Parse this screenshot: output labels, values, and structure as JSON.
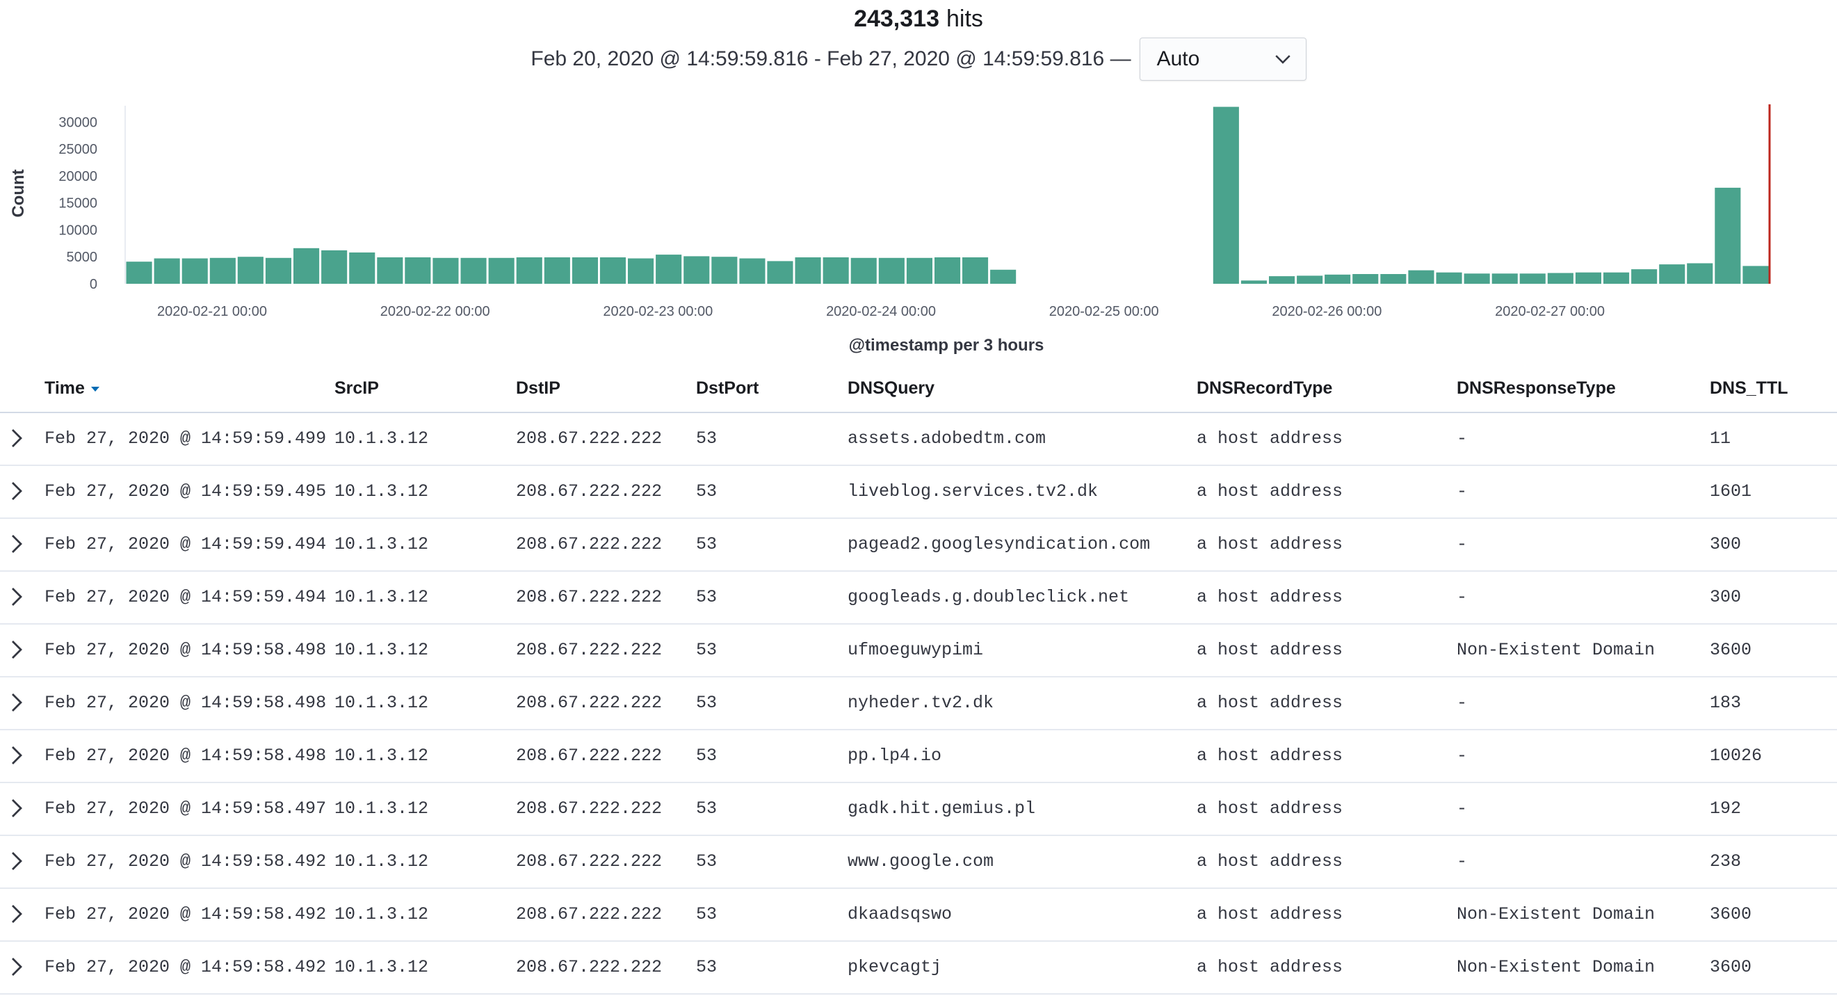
{
  "header": {
    "hit_count": "243,313",
    "hit_label": "hits",
    "time_range": "Feb 20, 2020 @ 14:59:59.816 - Feb 27, 2020 @ 14:59:59.816 —",
    "interval": {
      "selected": "Auto",
      "icon": "chevron-down-icon"
    }
  },
  "chart_data": {
    "type": "bar",
    "ylabel": "Count",
    "xlabel": "@timestamp per 3 hours",
    "ylim": [
      0,
      33000
    ],
    "y_ticks": [
      0,
      5000,
      10000,
      15000,
      20000,
      25000,
      30000
    ],
    "x_tick_labels": [
      "2020-02-21 00:00",
      "2020-02-22 00:00",
      "2020-02-23 00:00",
      "2020-02-24 00:00",
      "2020-02-25 00:00",
      "2020-02-26 00:00",
      "2020-02-27 00:00"
    ],
    "interval_hours": 3,
    "bar_color": "#4aa38d",
    "marker_color": "#bd271e",
    "bins_start": "2020-02-20 15:00",
    "values": [
      4100,
      4700,
      4700,
      4800,
      5000,
      4800,
      6600,
      6200,
      5800,
      4900,
      4900,
      4800,
      4800,
      4800,
      4900,
      4900,
      4900,
      4900,
      4700,
      5400,
      5100,
      5000,
      4700,
      4200,
      4900,
      4900,
      4800,
      4800,
      4800,
      4900,
      4900,
      2600,
      0,
      0,
      0,
      0,
      0,
      0,
      0,
      32800,
      600,
      1400,
      1500,
      1700,
      1800,
      1800,
      2500,
      2100,
      1900,
      1900,
      1900,
      2000,
      2100,
      2100,
      2700,
      3600,
      3800,
      17800,
      3300
    ],
    "marker": "2020-02-27 14:59:59.816"
  },
  "table": {
    "columns": [
      {
        "key": "time",
        "label": "Time",
        "sorted": "desc"
      },
      {
        "key": "src_ip",
        "label": "SrcIP"
      },
      {
        "key": "dst_ip",
        "label": "DstIP"
      },
      {
        "key": "dst_port",
        "label": "DstPort"
      },
      {
        "key": "dns_query",
        "label": "DNSQuery"
      },
      {
        "key": "dns_record_type",
        "label": "DNSRecordType"
      },
      {
        "key": "dns_response_type",
        "label": "DNSResponseType"
      },
      {
        "key": "dns_ttl",
        "label": "DNS_TTL"
      }
    ],
    "rows": [
      {
        "time": "Feb 27, 2020 @ 14:59:59.499",
        "src_ip": "10.1.3.12",
        "dst_ip": "208.67.222.222",
        "dst_port": "53",
        "dns_query": "assets.adobedtm.com",
        "dns_record_type": "a host address",
        "dns_response_type": " -",
        "dns_ttl": "11"
      },
      {
        "time": "Feb 27, 2020 @ 14:59:59.495",
        "src_ip": "10.1.3.12",
        "dst_ip": "208.67.222.222",
        "dst_port": "53",
        "dns_query": "liveblog.services.tv2.dk",
        "dns_record_type": "a host address",
        "dns_response_type": " -",
        "dns_ttl": "1601"
      },
      {
        "time": "Feb 27, 2020 @ 14:59:59.494",
        "src_ip": "10.1.3.12",
        "dst_ip": "208.67.222.222",
        "dst_port": "53",
        "dns_query": "pagead2.googlesyndication.com",
        "dns_record_type": "a host address",
        "dns_response_type": " -",
        "dns_ttl": "300"
      },
      {
        "time": "Feb 27, 2020 @ 14:59:59.494",
        "src_ip": "10.1.3.12",
        "dst_ip": "208.67.222.222",
        "dst_port": "53",
        "dns_query": "googleads.g.doubleclick.net",
        "dns_record_type": "a host address",
        "dns_response_type": " -",
        "dns_ttl": "300"
      },
      {
        "time": "Feb 27, 2020 @ 14:59:58.498",
        "src_ip": "10.1.3.12",
        "dst_ip": "208.67.222.222",
        "dst_port": "53",
        "dns_query": "ufmoeguwypimi",
        "dns_record_type": "a host address",
        "dns_response_type": "Non-Existent Domain",
        "dns_ttl": "3600"
      },
      {
        "time": "Feb 27, 2020 @ 14:59:58.498",
        "src_ip": "10.1.3.12",
        "dst_ip": "208.67.222.222",
        "dst_port": "53",
        "dns_query": "nyheder.tv2.dk",
        "dns_record_type": "a host address",
        "dns_response_type": " -",
        "dns_ttl": "183"
      },
      {
        "time": "Feb 27, 2020 @ 14:59:58.498",
        "src_ip": "10.1.3.12",
        "dst_ip": "208.67.222.222",
        "dst_port": "53",
        "dns_query": "pp.lp4.io",
        "dns_record_type": "a host address",
        "dns_response_type": " -",
        "dns_ttl": "10026"
      },
      {
        "time": "Feb 27, 2020 @ 14:59:58.497",
        "src_ip": "10.1.3.12",
        "dst_ip": "208.67.222.222",
        "dst_port": "53",
        "dns_query": "gadk.hit.gemius.pl",
        "dns_record_type": "a host address",
        "dns_response_type": " -",
        "dns_ttl": "192"
      },
      {
        "time": "Feb 27, 2020 @ 14:59:58.492",
        "src_ip": "10.1.3.12",
        "dst_ip": "208.67.222.222",
        "dst_port": "53",
        "dns_query": "www.google.com",
        "dns_record_type": "a host address",
        "dns_response_type": " -",
        "dns_ttl": "238"
      },
      {
        "time": "Feb 27, 2020 @ 14:59:58.492",
        "src_ip": "10.1.3.12",
        "dst_ip": "208.67.222.222",
        "dst_port": "53",
        "dns_query": "dkaadsqswo",
        "dns_record_type": "a host address",
        "dns_response_type": "Non-Existent Domain",
        "dns_ttl": "3600"
      },
      {
        "time": "Feb 27, 2020 @ 14:59:58.492",
        "src_ip": "10.1.3.12",
        "dst_ip": "208.67.222.222",
        "dst_port": "53",
        "dns_query": "pkevcagtj",
        "dns_record_type": "a host address",
        "dns_response_type": "Non-Existent Domain",
        "dns_ttl": "3600"
      }
    ]
  }
}
